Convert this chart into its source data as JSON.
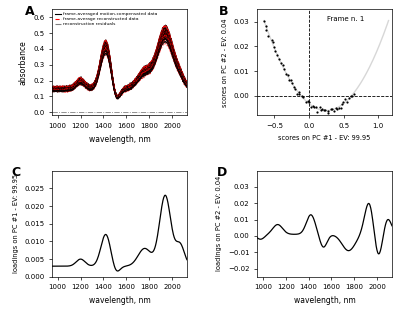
{
  "panel_A_label": "A",
  "panel_B_label": "B",
  "panel_C_label": "C",
  "panel_D_label": "D",
  "panel_A_xlabel": "wavelength, nm",
  "panel_A_ylabel": "absorbance",
  "panel_B_xlabel": "scores on PC #1 - EV: 99.95",
  "panel_B_ylabel": "scores on PC #2 - EV: 0.04",
  "panel_C_xlabel": "wavelength, nm",
  "panel_C_ylabel": "loadings on PC #1 - EV: 99.95",
  "panel_D_xlabel": "wavelength, nm",
  "panel_D_ylabel": "loadings on PC #2 - EV: 0.04",
  "legend_A": [
    "frame-averaged motion-compensated data",
    "frame-average reconstructed data",
    "reconstruction residuals"
  ],
  "frame_label": "Frame n. 1",
  "bg_color": "#ffffff",
  "A_ylim": [
    0,
    0.65
  ],
  "A_yticks": [
    0,
    0.1,
    0.2,
    0.3,
    0.4,
    0.5,
    0.6
  ],
  "A_xticks": [
    1000,
    1200,
    1400,
    1600,
    1800,
    2000
  ],
  "B_xlim": [
    -0.75,
    1.2
  ],
  "B_ylim": [
    -0.008,
    0.035
  ],
  "B_xticks": [
    -0.5,
    0,
    0.5,
    1.0
  ],
  "B_yticks": [
    0,
    0.01,
    0.02,
    0.03
  ],
  "C_ylim": [
    0,
    0.03
  ],
  "C_yticks": [
    0,
    0.005,
    0.01,
    0.015,
    0.02,
    0.025
  ],
  "C_xticks": [
    1000,
    1200,
    1400,
    1600,
    1800,
    2000
  ],
  "D_ylim": [
    -0.025,
    0.04
  ],
  "D_yticks": [
    -0.02,
    -0.01,
    0,
    0.01,
    0.02,
    0.03
  ],
  "D_xticks": [
    1000,
    1200,
    1400,
    1600,
    1800,
    2000
  ]
}
